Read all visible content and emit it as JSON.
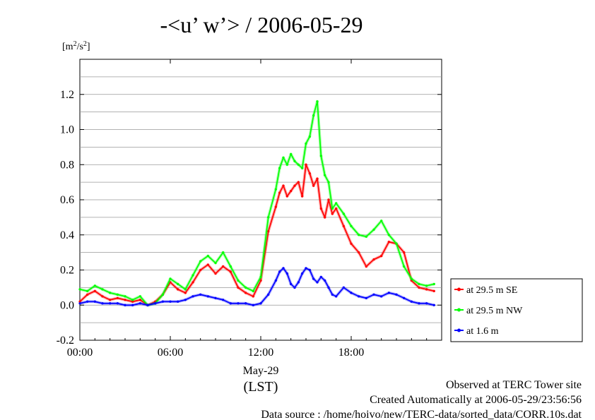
{
  "chart_data": {
    "type": "line",
    "title": "-<u’ w’> / 2006-05-29",
    "ylabel_unit": "[m2/s2]",
    "ylabel_unit_base": "[m",
    "ylabel_unit_exp1": "2",
    "ylabel_unit_mid": "/s",
    "ylabel_unit_exp2": "2",
    "ylabel_unit_end": "]",
    "ylim": [
      -0.2,
      1.4
    ],
    "yticks": [
      -0.2,
      0.0,
      0.2,
      0.4,
      0.6,
      0.8,
      1.0,
      1.2
    ],
    "ytick_labels": [
      "-0.2",
      "0.0",
      "0.2",
      "0.4",
      "0.6",
      "0.8",
      "1.0",
      "1.2"
    ],
    "xlim": [
      0,
      24
    ],
    "xticks": [
      0,
      6,
      12,
      18
    ],
    "xtick_labels": [
      "00:00",
      "06:00",
      "12:00",
      "18:00"
    ],
    "x_date_label": "May-29",
    "x_timezone_label": "(LST)",
    "grid": "horizontal",
    "legend_position": "bottom-right-outside",
    "series": [
      {
        "name": "at 29.5 m SE",
        "color": "#ff0000",
        "x": [
          0,
          0.5,
          1,
          1.5,
          2,
          2.5,
          3,
          3.5,
          4,
          4.5,
          5,
          5.5,
          6,
          6.5,
          7,
          7.5,
          8,
          8.5,
          9,
          9.5,
          10,
          10.5,
          11,
          11.5,
          12,
          12.5,
          13,
          13.25,
          13.5,
          13.75,
          14,
          14.25,
          14.5,
          14.75,
          15,
          15.25,
          15.5,
          15.75,
          16,
          16.25,
          16.5,
          16.75,
          17,
          17.5,
          18,
          18.5,
          19,
          19.5,
          20,
          20.5,
          21,
          21.5,
          22,
          22.5,
          23,
          23.5
        ],
        "y": [
          0.02,
          0.06,
          0.08,
          0.05,
          0.03,
          0.04,
          0.03,
          0.02,
          0.03,
          0.0,
          0.02,
          0.06,
          0.13,
          0.09,
          0.07,
          0.13,
          0.2,
          0.23,
          0.18,
          0.22,
          0.19,
          0.1,
          0.07,
          0.05,
          0.14,
          0.42,
          0.56,
          0.64,
          0.68,
          0.62,
          0.65,
          0.68,
          0.7,
          0.62,
          0.8,
          0.75,
          0.68,
          0.72,
          0.55,
          0.5,
          0.6,
          0.52,
          0.55,
          0.45,
          0.35,
          0.3,
          0.22,
          0.26,
          0.28,
          0.36,
          0.35,
          0.3,
          0.14,
          0.1,
          0.09,
          0.08
        ]
      },
      {
        "name": "at 29.5 m NW",
        "color": "#00ff00",
        "x": [
          0,
          0.5,
          1,
          1.5,
          2,
          2.5,
          3,
          3.5,
          4,
          4.5,
          5,
          5.5,
          6,
          6.5,
          7,
          7.5,
          8,
          8.5,
          9,
          9.5,
          10,
          10.5,
          11,
          11.5,
          12,
          12.5,
          13,
          13.25,
          13.5,
          13.75,
          14,
          14.25,
          14.5,
          14.75,
          15,
          15.25,
          15.5,
          15.75,
          16,
          16.25,
          16.5,
          16.75,
          17,
          17.5,
          18,
          18.5,
          19,
          19.5,
          20,
          20.5,
          21,
          21.5,
          22,
          22.5,
          23,
          23.5
        ],
        "y": [
          0.09,
          0.08,
          0.11,
          0.09,
          0.07,
          0.06,
          0.05,
          0.03,
          0.05,
          0.0,
          0.01,
          0.06,
          0.15,
          0.12,
          0.09,
          0.17,
          0.25,
          0.28,
          0.24,
          0.3,
          0.22,
          0.14,
          0.1,
          0.08,
          0.16,
          0.5,
          0.66,
          0.78,
          0.84,
          0.8,
          0.86,
          0.82,
          0.8,
          0.78,
          0.92,
          0.96,
          1.08,
          1.16,
          0.85,
          0.74,
          0.7,
          0.55,
          0.58,
          0.52,
          0.45,
          0.4,
          0.39,
          0.43,
          0.48,
          0.4,
          0.35,
          0.22,
          0.15,
          0.12,
          0.11,
          0.12
        ]
      },
      {
        "name": "at 1.6 m",
        "color": "#0000ff",
        "x": [
          0,
          0.5,
          1,
          1.5,
          2,
          2.5,
          3,
          3.5,
          4,
          4.5,
          5,
          5.5,
          6,
          6.5,
          7,
          7.5,
          8,
          8.5,
          9,
          9.5,
          10,
          10.5,
          11,
          11.5,
          12,
          12.5,
          13,
          13.25,
          13.5,
          13.75,
          14,
          14.25,
          14.5,
          14.75,
          15,
          15.25,
          15.5,
          15.75,
          16,
          16.25,
          16.5,
          16.75,
          17,
          17.5,
          18,
          18.5,
          19,
          19.5,
          20,
          20.5,
          21,
          21.5,
          22,
          22.5,
          23,
          23.5
        ],
        "y": [
          0.01,
          0.02,
          0.02,
          0.01,
          0.01,
          0.01,
          0.0,
          0.0,
          0.01,
          0.0,
          0.01,
          0.02,
          0.02,
          0.02,
          0.03,
          0.05,
          0.06,
          0.05,
          0.04,
          0.03,
          0.01,
          0.01,
          0.01,
          0.0,
          0.01,
          0.06,
          0.14,
          0.19,
          0.21,
          0.18,
          0.12,
          0.1,
          0.13,
          0.18,
          0.21,
          0.2,
          0.15,
          0.13,
          0.16,
          0.14,
          0.1,
          0.06,
          0.05,
          0.1,
          0.07,
          0.05,
          0.04,
          0.06,
          0.05,
          0.07,
          0.06,
          0.04,
          0.02,
          0.01,
          0.01,
          0.0
        ]
      }
    ]
  },
  "footer": {
    "line1": "Observed at TERC Tower site",
    "line2": "Created Automatically at 2006-05-29/23:56:56",
    "line3": "Data source : /home/hoivo/new/TERC-data/sorted_data/CORR.10s.dat"
  }
}
